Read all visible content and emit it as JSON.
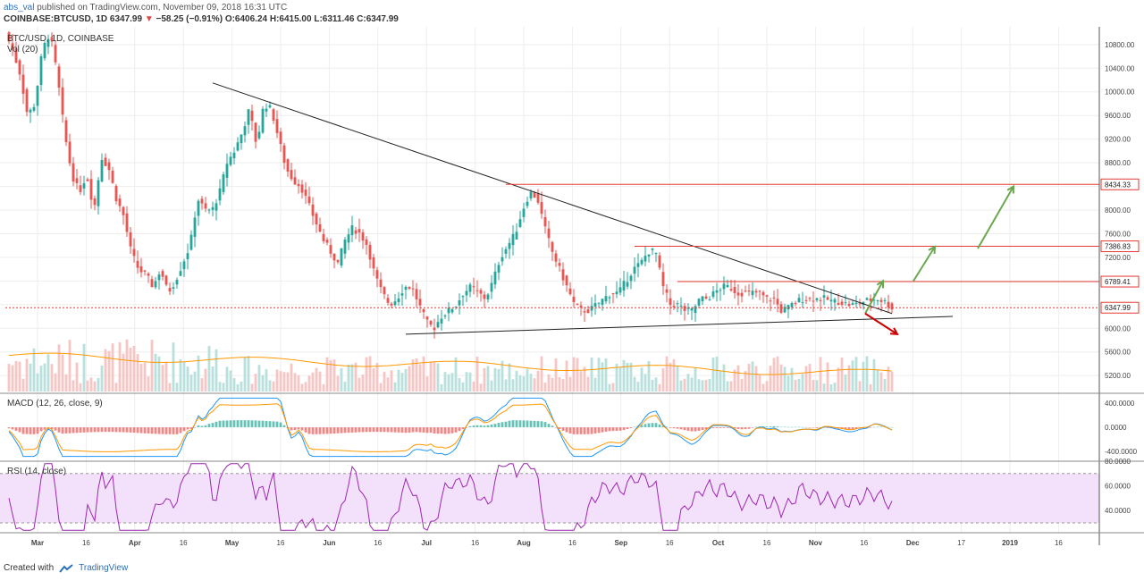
{
  "header": {
    "user": "abs_val",
    "published_text": "published on TradingView.com, November 09, 2018 16:31 UTC",
    "symbol": "COINBASE:BTCUSD, 1D",
    "last": "6347.99",
    "change": "−58.25 (−0.91%)",
    "o": "O:6406.24",
    "h": "H:6415.00",
    "l": "L:6311.46",
    "c": "C:6347.99"
  },
  "legend": {
    "symbol_line": "BTC/USD, 1D, COINBASE",
    "vol_line": "Vol (20)",
    "macd_line": "MACD (12, 26, close, 9)",
    "rsi_line": "RSI (14, close)"
  },
  "footer": {
    "created_with": "Created with",
    "brand": "TradingView"
  },
  "colors": {
    "up": "#26a69a",
    "down": "#ef5350",
    "macd": "#2196f3",
    "signal": "#ff9800",
    "rsi": "#9c27b0",
    "rsi_band": "#f3e0fb",
    "level": "#e53935",
    "arrow_up": "#6aa84f",
    "arrow_down": "#cc0000",
    "trend": "#222222"
  },
  "chart_data": {
    "type": "candlestick",
    "price_axis": {
      "ticks": [
        "10800.00",
        "10400.00",
        "10000.00",
        "9600.00",
        "9200.00",
        "8800.00",
        "8400.00",
        "8000.00",
        "7600.00",
        "7200.00",
        "6800.00",
        "6400.00",
        "6000.00",
        "5600.00",
        "5200.00"
      ],
      "range": [
        4900,
        11100
      ]
    },
    "level_labels": [
      {
        "label": "8434.33",
        "value": 8434.33
      },
      {
        "label": "7386.83",
        "value": 7386.83
      },
      {
        "label": "6789.41",
        "value": 6789.41
      },
      {
        "label": "6347.99",
        "value": 6347.99
      }
    ],
    "time_axis": {
      "labels": [
        "Mar",
        "16",
        "Apr",
        "16",
        "May",
        "16",
        "Jun",
        "16",
        "Jul",
        "16",
        "Aug",
        "16",
        "Sep",
        "16",
        "Oct",
        "16",
        "Nov",
        "16",
        "Dec",
        "17",
        "2019",
        "16"
      ],
      "bold": [
        "Mar",
        "Apr",
        "May",
        "Jun",
        "Jul",
        "Aug",
        "Sep",
        "Oct",
        "Nov",
        "Dec",
        "2019"
      ]
    },
    "price_series": [
      11000,
      10700,
      10300,
      9600,
      9800,
      10700,
      11000,
      10300,
      9300,
      8600,
      8300,
      8600,
      8000,
      8900,
      8700,
      8200,
      7900,
      7300,
      7000,
      6900,
      6700,
      7000,
      6600,
      6800,
      7100,
      7400,
      8200,
      8000,
      8000,
      8300,
      8800,
      9000,
      9300,
      9700,
      9100,
      9800,
      9700,
      9200,
      8700,
      8500,
      8400,
      8100,
      7800,
      7500,
      7300,
      7100,
      7500,
      7700,
      7600,
      7400,
      6900,
      6600,
      6400,
      6500,
      6700,
      6700,
      6400,
      6100,
      6000,
      6200,
      6300,
      6400,
      6600,
      6700,
      6600,
      6500,
      6800,
      7200,
      7400,
      7600,
      8000,
      8300,
      8200,
      7700,
      7300,
      7000,
      6700,
      6400,
      6300,
      6300,
      6400,
      6500,
      6600,
      6600,
      6800,
      7000,
      7100,
      7300,
      7300,
      6700,
      6400,
      6400,
      6300,
      6300,
      6500,
      6500,
      6600,
      6700,
      6700,
      6600,
      6600,
      6600,
      6600,
      6500,
      6500,
      6300,
      6350,
      6450,
      6500,
      6500,
      6500,
      6500,
      6450,
      6450,
      6400,
      6400,
      6450,
      6480,
      6500,
      6450,
      6348
    ],
    "trendlines": [
      {
        "name": "upper",
        "from": {
          "day": 58,
          "price": 10150
        },
        "to": {
          "day": 248,
          "price": 6250
        }
      },
      {
        "name": "lower",
        "from": {
          "day": 112,
          "price": 5900
        },
        "to": {
          "day": 265,
          "price": 6200
        }
      }
    ],
    "macd": {
      "ticks": [
        "400.0000",
        "0.0000",
        "-400.0000"
      ],
      "range": [
        -560,
        560
      ]
    },
    "rsi": {
      "ticks": [
        "80.0000",
        "60.0000",
        "40.0000"
      ],
      "range": [
        22,
        80
      ],
      "band": [
        30,
        70
      ]
    }
  }
}
